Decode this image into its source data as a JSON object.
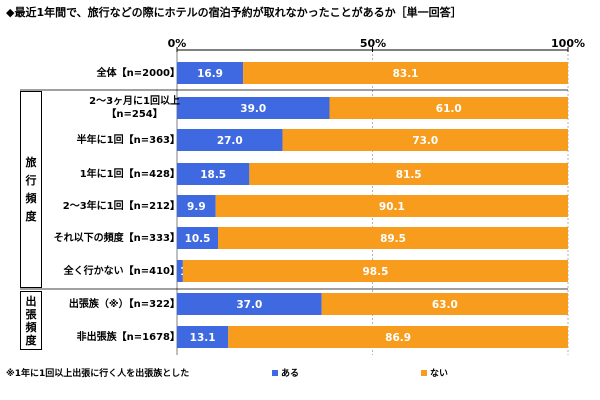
{
  "title": "◆最近1年間で、旅行などの際にホテルの宿泊予約が取れなかったことがあるか［単一回答］",
  "axis_ticks": [
    "0%",
    "50%",
    "100%"
  ],
  "groups": {
    "travel": "旅行頻度",
    "business": "出張頻度"
  },
  "footnote": "※1年に1回以上出張に行く人を出張族とした",
  "colors": {
    "yes": "#3f69e0",
    "no": "#f79c1c"
  },
  "chart_data": {
    "type": "bar",
    "orientation": "horizontal",
    "stacked": true,
    "percent": true,
    "title": "◆最近1年間で、旅行などの際にホテルの宿泊予約が取れなかったことがあるか［単一回答］",
    "xlim": [
      0,
      100
    ],
    "x_ticks": [
      "0%",
      "50%",
      "100%"
    ],
    "legend_position": "bottom",
    "categories": [
      [
        "全体【n=2000】"
      ],
      [
        "2～3ヶ月に1回以上",
        "【n=254】"
      ],
      [
        "半年に1回【n=363】"
      ],
      [
        "1年に1回【n=428】"
      ],
      [
        "2～3年に1回【n=212】"
      ],
      [
        "それ以下の頻度【n=333】"
      ],
      [
        "全く行かない【n=410】"
      ],
      [
        "出張族（※）【n=322】"
      ],
      [
        "非出張族【n=1678】"
      ]
    ],
    "series": [
      {
        "name": "ある",
        "color": "#3f69e0",
        "values": [
          16.9,
          39.0,
          27.0,
          18.5,
          9.9,
          10.5,
          1.5,
          37.0,
          13.1
        ]
      },
      {
        "name": "ない",
        "color": "#f79c1c",
        "values": [
          83.1,
          61.0,
          73.0,
          81.5,
          90.1,
          89.5,
          98.5,
          63.0,
          86.9
        ]
      }
    ]
  }
}
